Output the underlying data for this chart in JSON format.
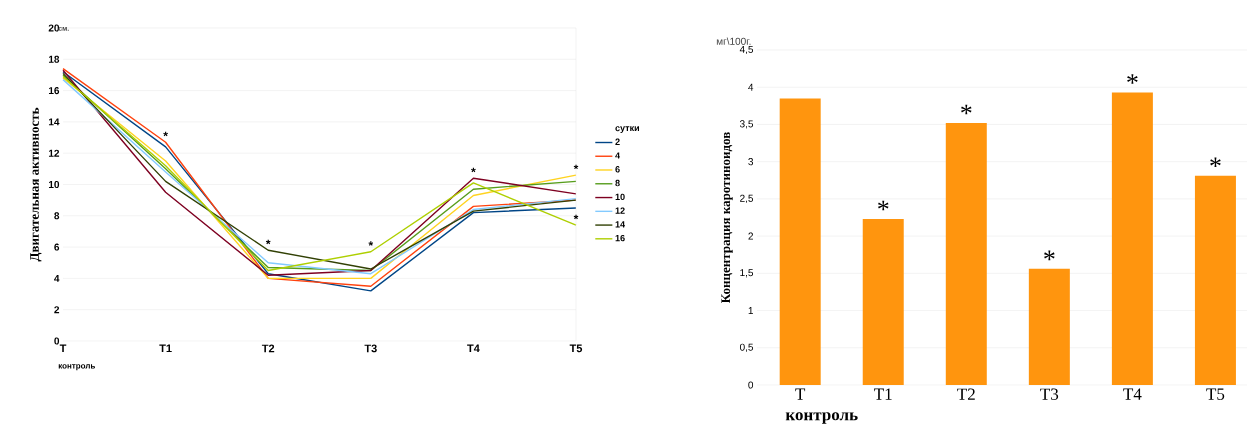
{
  "chart_data": [
    {
      "type": "line",
      "ylabel": "Двигательная активность",
      "legend_title": "сутки",
      "categories": [
        "T",
        "T1",
        "T2",
        "T3",
        "T4",
        "T5"
      ],
      "series": [
        {
          "name": "2",
          "color": "#004586",
          "values": [
            17.2,
            12.4,
            4.3,
            3.2,
            8.2,
            8.5
          ]
        },
        {
          "name": "4",
          "color": "#ff420e",
          "values": [
            17.4,
            12.7,
            4.0,
            3.5,
            8.6,
            9.0
          ]
        },
        {
          "name": "6",
          "color": "#ffd320",
          "values": [
            16.8,
            11.5,
            4.0,
            4.0,
            9.3,
            10.6
          ]
        },
        {
          "name": "8",
          "color": "#579d1c",
          "values": [
            17.0,
            11.0,
            4.7,
            4.5,
            9.7,
            10.2
          ]
        },
        {
          "name": "10",
          "color": "#7e0021",
          "values": [
            17.3,
            9.5,
            4.2,
            4.5,
            10.4,
            9.4
          ]
        },
        {
          "name": "12",
          "color": "#83caff",
          "values": [
            16.7,
            10.8,
            5.0,
            4.3,
            8.4,
            9.1
          ]
        },
        {
          "name": "14",
          "color": "#314004",
          "values": [
            17.1,
            10.2,
            5.8,
            4.6,
            8.3,
            9.0
          ]
        },
        {
          "name": "16",
          "color": "#aecf00",
          "values": [
            16.9,
            11.2,
            4.5,
            5.7,
            10.1,
            7.4
          ]
        }
      ],
      "ylim": [
        0,
        20
      ],
      "yticks": [
        0,
        2,
        4,
        6,
        8,
        10,
        12,
        14,
        16,
        18,
        20
      ],
      "grid": "y",
      "legend": "right",
      "marker": "none",
      "line_style": "solid",
      "annotations": [
        "см.",
        "контроль",
        {
          "text": "*",
          "x": "T1",
          "y": 12.7
        },
        {
          "text": "*",
          "x": "T2",
          "y": 5.8
        },
        {
          "text": "*",
          "x": "T3",
          "y": 5.7
        },
        {
          "text": "*",
          "x": "T4",
          "y": 10.4
        },
        {
          "text": "*",
          "x": "T5",
          "y": 10.6
        },
        {
          "text": "*",
          "x": "T5",
          "y": 7.4
        }
      ]
    },
    {
      "type": "bar",
      "ylabel": "Концентрация каротиноидов",
      "categories": [
        "T",
        "T1",
        "T2",
        "T3",
        "T4",
        "T5"
      ],
      "values": [
        3.85,
        2.23,
        3.52,
        1.56,
        3.93,
        2.81
      ],
      "color": "#ff950e",
      "ylim": [
        0,
        4.5
      ],
      "yticks": [
        0,
        {
          "value": 0.5,
          "label": "0,5"
        },
        1,
        {
          "value": 1.5,
          "label": "1,5"
        },
        2,
        {
          "value": 2.5,
          "label": "2,5"
        },
        3,
        {
          "value": 3.5,
          "label": "3,5"
        },
        4,
        {
          "value": 4.5,
          "label": "4,5"
        }
      ],
      "grid": "y",
      "legend": false,
      "annotations": [
        "мг\\100г.",
        "контроль",
        {
          "text": "*",
          "x": "T1",
          "y": 2.23
        },
        {
          "text": "*",
          "x": "T2",
          "y": 3.52
        },
        {
          "text": "*",
          "x": "T3",
          "y": 1.56
        },
        {
          "text": "*",
          "x": "T4",
          "y": 3.93
        },
        {
          "text": "*",
          "x": "T5",
          "y": 2.81
        }
      ]
    }
  ]
}
